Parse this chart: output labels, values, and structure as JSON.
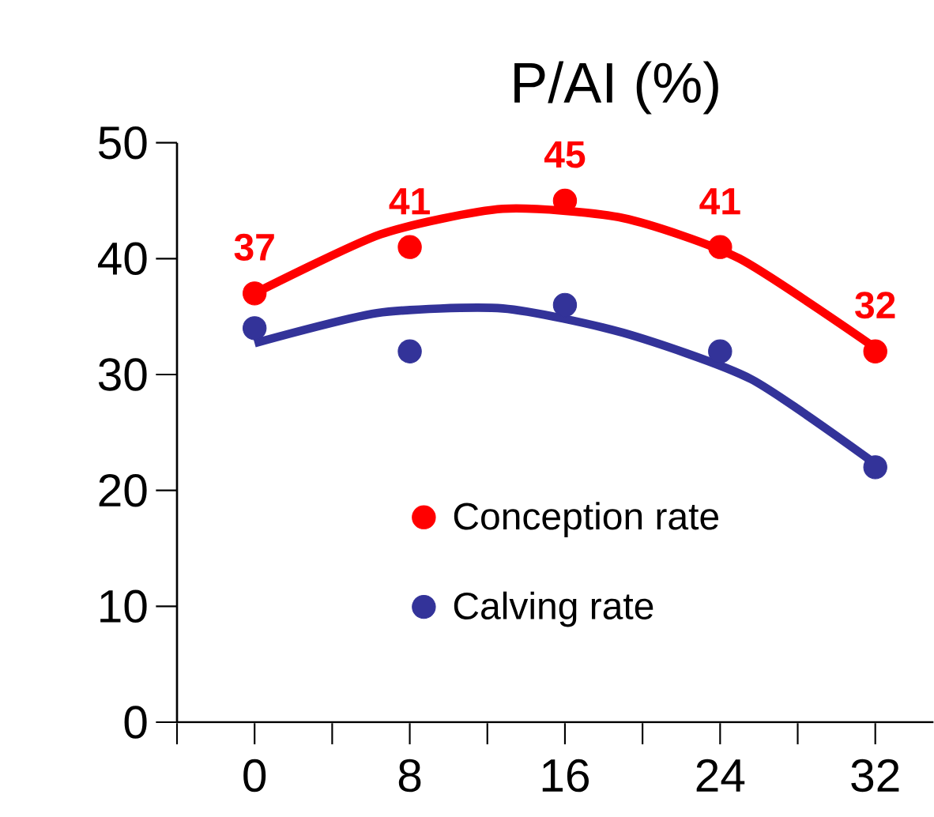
{
  "chart_data": {
    "type": "scatter",
    "title": "P/AI (%)",
    "xlim": [
      -4,
      35
    ],
    "xticks": [
      {
        "value": -4,
        "label": null
      },
      0,
      {
        "value": 4,
        "label": null
      },
      8,
      {
        "value": 12,
        "label": null
      },
      16,
      {
        "value": 20,
        "label": null
      },
      24,
      {
        "value": 28,
        "label": null
      },
      32
    ],
    "ylim": [
      0,
      50
    ],
    "yticks": [
      0,
      10,
      20,
      30,
      40,
      50
    ],
    "legend": "bottom",
    "series": [
      {
        "name": "Conception rate",
        "marker": "circle",
        "color": "#ff0000",
        "x": [
          0,
          8,
          16,
          24,
          32
        ],
        "values": [
          37,
          41,
          45,
          41,
          32
        ],
        "value_labels": [
          "37",
          "41",
          "45",
          "41",
          "32"
        ]
      },
      {
        "name": "Calving rate",
        "marker": "circle",
        "color": "#333399",
        "x": [
          0,
          8,
          16,
          24,
          32
        ],
        "values": [
          34,
          32,
          36,
          32,
          22
        ]
      },
      {
        "type": "line",
        "marker": "none",
        "color": "#ff0000",
        "line_style": "solid",
        "x": [
          0,
          6.5,
          12.8,
          19,
          25,
          32
        ],
        "values": [
          37,
          42.1,
          44.3,
          43.5,
          40,
          32.3
        ]
      },
      {
        "type": "line",
        "marker": "none",
        "color": "#333399",
        "line_style": "solid",
        "x": [
          0,
          6.3,
          12.8,
          19,
          25.6,
          32
        ],
        "values": [
          32.7,
          35.3,
          35.7,
          33.6,
          29.6,
          22.3
        ]
      }
    ]
  }
}
